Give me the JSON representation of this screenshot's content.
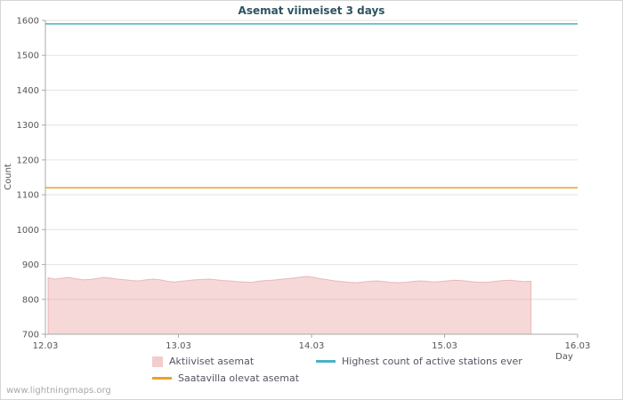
{
  "page": {
    "watermark": "www.lightningmaps.org"
  },
  "chart_data": {
    "type": "area",
    "title": "Asemat viimeiset 3 days",
    "xlabel": "Day",
    "ylabel": "Count",
    "ylim": [
      700,
      1600
    ],
    "xlim": [
      12.03,
      16.03
    ],
    "yticks": [
      700,
      800,
      900,
      1000,
      1100,
      1200,
      1300,
      1400,
      1500,
      1600
    ],
    "xticks": [
      {
        "value": 12.03,
        "label": "12.03"
      },
      {
        "value": 13.03,
        "label": "13.03"
      },
      {
        "value": 14.03,
        "label": "14.03"
      },
      {
        "value": 15.03,
        "label": "15.03"
      },
      {
        "value": 16.03,
        "label": "16.03"
      }
    ],
    "grid": "horizontal-only",
    "legend_position": "bottom",
    "series": [
      {
        "name": "Aktiiviset asemat",
        "type": "area",
        "color": "#eba8a8",
        "fill_opacity": 0.45,
        "x_start": 12.05,
        "x_end": 15.68,
        "values": [
          862,
          858,
          861,
          863,
          859,
          856,
          857,
          860,
          863,
          861,
          858,
          856,
          854,
          853,
          856,
          858,
          856,
          852,
          850,
          852,
          854,
          856,
          857,
          858,
          856,
          854,
          853,
          851,
          850,
          849,
          852,
          854,
          855,
          857,
          859,
          861,
          864,
          866,
          863,
          859,
          856,
          853,
          851,
          849,
          848,
          850,
          852,
          853,
          851,
          849,
          848,
          849,
          851,
          853,
          852,
          850,
          851,
          853,
          855,
          854,
          852,
          850,
          849,
          850,
          852,
          854,
          855,
          853,
          851,
          852
        ]
      },
      {
        "name": "Saatavilla olevat asemat",
        "type": "hline",
        "color": "#eaa228",
        "constant": 1120
      },
      {
        "name": "Highest count of active stations ever",
        "type": "hline",
        "color": "#4bb2c5",
        "constant": 1590
      }
    ],
    "legend": [
      {
        "label": "Aktiiviset asemat",
        "color": "#f2cdcd",
        "swatch": "area"
      },
      {
        "label": "Highest count of active stations ever",
        "color": "#4bb2c5",
        "swatch": "line"
      },
      {
        "label": "Saatavilla olevat asemat",
        "color": "#eaa228",
        "swatch": "line"
      }
    ]
  }
}
